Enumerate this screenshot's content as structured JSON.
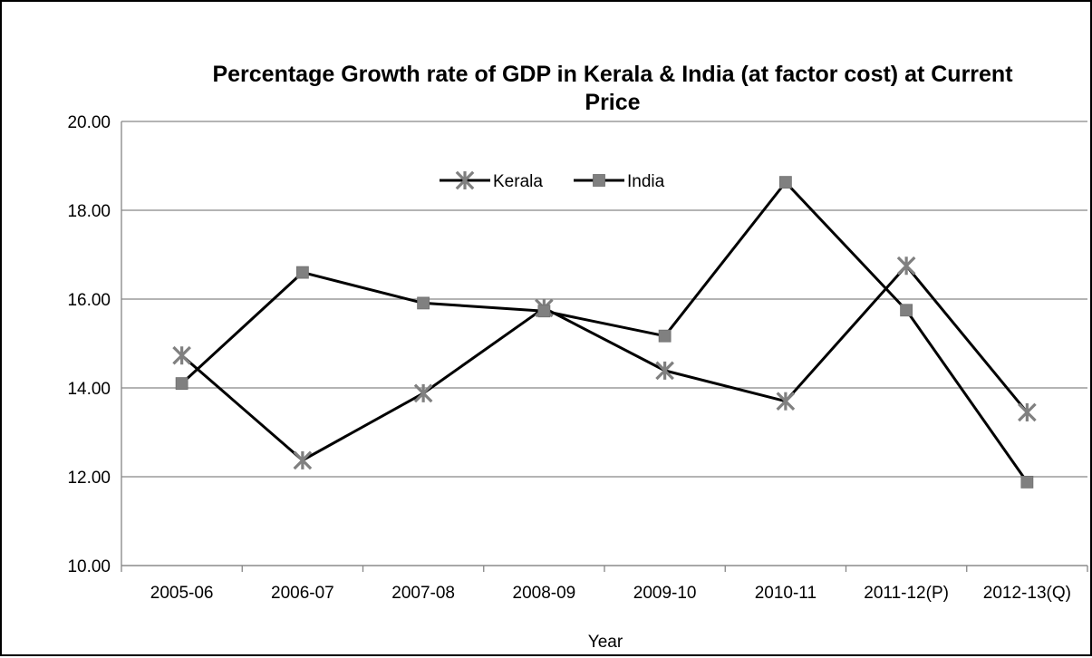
{
  "chart_data": {
    "type": "line",
    "title": "Percentage Growth rate of GDP in Kerala & India (at factor cost) at Current Price",
    "title_lines": [
      "Percentage Growth rate of GDP in Kerala & India (at factor cost) at Current",
      "Price"
    ],
    "xlabel": "Year",
    "ylabel": "",
    "categories": [
      "2005-06",
      "2006-07",
      "2007-08",
      "2008-09",
      "2009-10",
      "2010-11",
      "2011-12(P)",
      "2012-13(Q)"
    ],
    "ylim": [
      10,
      20
    ],
    "yticks": [
      10,
      12,
      14,
      16,
      18,
      20
    ],
    "ytick_labels": [
      "10.00",
      "12.00",
      "14.00",
      "16.00",
      "18.00",
      "20.00"
    ],
    "grid": true,
    "legend_position": "top-center",
    "series": [
      {
        "name": "Kerala",
        "marker": "star",
        "line_color": "#000000",
        "marker_color": "#808080",
        "values": [
          14.73,
          12.37,
          13.88,
          15.8,
          14.39,
          13.7,
          16.75,
          13.45
        ]
      },
      {
        "name": "India",
        "marker": "square",
        "line_color": "#000000",
        "marker_color": "#808080",
        "values": [
          14.1,
          16.6,
          15.91,
          15.73,
          15.17,
          18.63,
          15.75,
          11.88
        ]
      }
    ]
  }
}
